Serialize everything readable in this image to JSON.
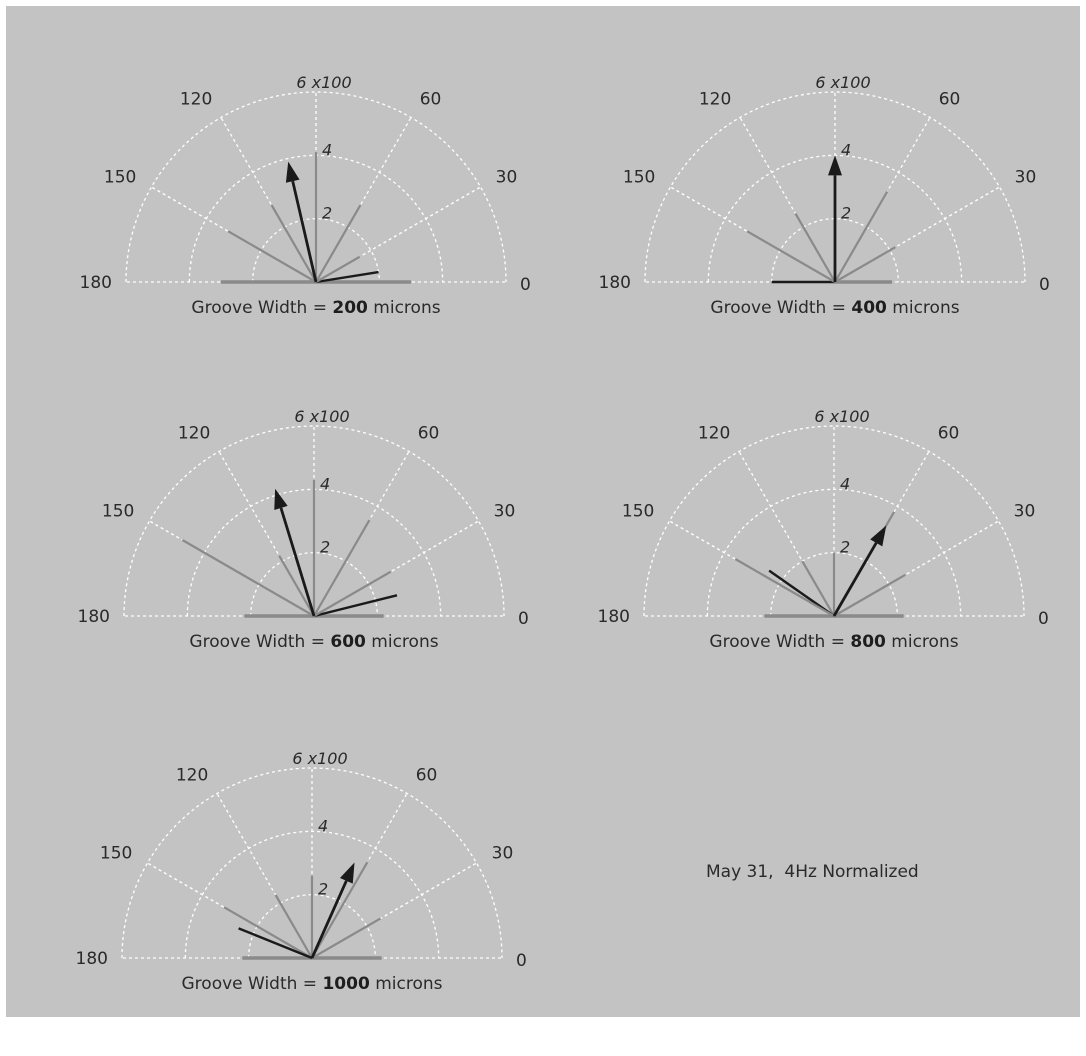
{
  "note": "May 31,  4Hz Normalized",
  "chart_data": [
    {
      "type": "polar",
      "caption_prefix": "Groove Width = ",
      "caption_value": "200",
      "caption_suffix": " microns",
      "angle_ticks": [
        "0",
        "30",
        "60",
        "120",
        "150",
        "180"
      ],
      "radius_ticks": [
        "2",
        "4",
        "6 x100"
      ],
      "rlim": [
        0,
        6
      ],
      "alim": [
        0,
        180
      ],
      "components": [
        {
          "angle": 0,
          "length": 3.0,
          "shade": "grey"
        },
        {
          "angle": 180,
          "length": 3.0,
          "shade": "grey"
        },
        {
          "angle": 9,
          "length": 2.0,
          "shade": "dark"
        },
        {
          "angle": 30,
          "length": 1.6,
          "shade": "grey"
        },
        {
          "angle": 60,
          "length": 2.8,
          "shade": "grey"
        },
        {
          "angle": 90,
          "length": 4.1,
          "shade": "grey"
        },
        {
          "angle": 120,
          "length": 2.8,
          "shade": "grey"
        },
        {
          "angle": 150,
          "length": 3.2,
          "shade": "grey"
        }
      ],
      "resultant": {
        "angle": 103,
        "length": 3.9
      }
    },
    {
      "type": "polar",
      "caption_prefix": "Groove Width = ",
      "caption_value": "400",
      "caption_suffix": " microns",
      "angle_ticks": [
        "0",
        "30",
        "60",
        "120",
        "150",
        "180"
      ],
      "radius_ticks": [
        "2",
        "4",
        "6 x100"
      ],
      "rlim": [
        0,
        6
      ],
      "alim": [
        0,
        180
      ],
      "components": [
        {
          "angle": 0,
          "length": 1.8,
          "shade": "grey"
        },
        {
          "angle": 180,
          "length": 2.0,
          "shade": "dark"
        },
        {
          "angle": 30,
          "length": 2.2,
          "shade": "grey"
        },
        {
          "angle": 60,
          "length": 3.3,
          "shade": "grey"
        },
        {
          "angle": 120,
          "length": 2.5,
          "shade": "grey"
        },
        {
          "angle": 150,
          "length": 3.2,
          "shade": "grey"
        }
      ],
      "resultant": {
        "angle": 90,
        "length": 4.0
      }
    },
    {
      "type": "polar",
      "caption_prefix": "Groove Width = ",
      "caption_value": "600",
      "caption_suffix": " microns",
      "angle_ticks": [
        "0",
        "30",
        "60",
        "120",
        "150",
        "180"
      ],
      "radius_ticks": [
        "2",
        "4",
        "6 x100"
      ],
      "rlim": [
        0,
        6
      ],
      "alim": [
        0,
        180
      ],
      "components": [
        {
          "angle": 0,
          "length": 2.2,
          "shade": "grey"
        },
        {
          "angle": 180,
          "length": 2.2,
          "shade": "grey"
        },
        {
          "angle": 14,
          "length": 2.7,
          "shade": "dark"
        },
        {
          "angle": 30,
          "length": 2.8,
          "shade": "grey"
        },
        {
          "angle": 60,
          "length": 3.5,
          "shade": "grey"
        },
        {
          "angle": 90,
          "length": 4.3,
          "shade": "grey"
        },
        {
          "angle": 120,
          "length": 2.2,
          "shade": "grey"
        },
        {
          "angle": 150,
          "length": 4.8,
          "shade": "grey"
        }
      ],
      "resultant": {
        "angle": 107,
        "length": 4.2
      }
    },
    {
      "type": "polar",
      "caption_prefix": "Groove Width = ",
      "caption_value": "800",
      "caption_suffix": " microns",
      "angle_ticks": [
        "0",
        "30",
        "60",
        "120",
        "150",
        "180"
      ],
      "radius_ticks": [
        "2",
        "4",
        "6 x100"
      ],
      "rlim": [
        0,
        6
      ],
      "alim": [
        0,
        180
      ],
      "components": [
        {
          "angle": 0,
          "length": 2.2,
          "shade": "grey"
        },
        {
          "angle": 180,
          "length": 2.2,
          "shade": "grey"
        },
        {
          "angle": 30,
          "length": 2.6,
          "shade": "grey"
        },
        {
          "angle": 60,
          "length": 3.8,
          "shade": "grey"
        },
        {
          "angle": 90,
          "length": 2.0,
          "shade": "grey"
        },
        {
          "angle": 120,
          "length": 2.0,
          "shade": "grey"
        },
        {
          "angle": 145,
          "length": 2.5,
          "shade": "dark"
        },
        {
          "angle": 150,
          "length": 3.6,
          "shade": "grey"
        }
      ],
      "resultant": {
        "angle": 60,
        "length": 3.3
      }
    },
    {
      "type": "polar",
      "caption_prefix": "Groove Width = ",
      "caption_value": "1000",
      "caption_suffix": " microns",
      "angle_ticks": [
        "0",
        "30",
        "60",
        "120",
        "150",
        "180"
      ],
      "radius_ticks": [
        "2",
        "4",
        "6 x100"
      ],
      "rlim": [
        0,
        6
      ],
      "alim": [
        0,
        180
      ],
      "components": [
        {
          "angle": 0,
          "length": 2.2,
          "shade": "grey"
        },
        {
          "angle": 180,
          "length": 2.2,
          "shade": "grey"
        },
        {
          "angle": 30,
          "length": 2.5,
          "shade": "grey"
        },
        {
          "angle": 60,
          "length": 3.5,
          "shade": "grey"
        },
        {
          "angle": 90,
          "length": 2.6,
          "shade": "grey"
        },
        {
          "angle": 120,
          "length": 2.3,
          "shade": "grey"
        },
        {
          "angle": 150,
          "length": 3.2,
          "shade": "grey"
        },
        {
          "angle": 158,
          "length": 2.5,
          "shade": "dark"
        }
      ],
      "resultant": {
        "angle": 66,
        "length": 3.3
      }
    }
  ]
}
